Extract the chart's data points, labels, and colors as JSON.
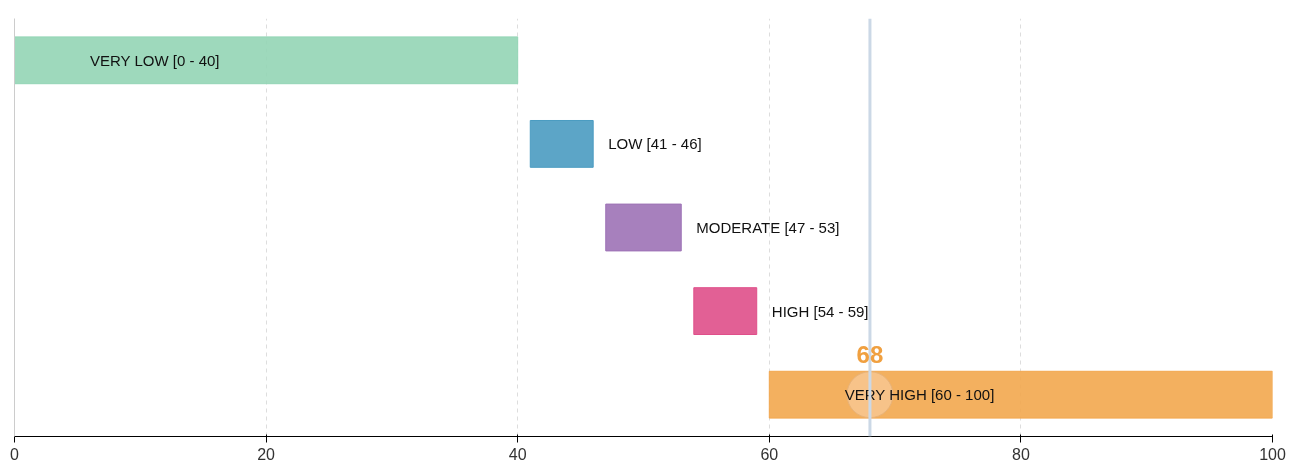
{
  "chart_data": {
    "type": "bar",
    "orientation": "horizontal",
    "categories": [
      null,
      null,
      null,
      null,
      null
    ],
    "base": [
      0,
      41,
      47,
      54,
      60
    ],
    "values": [
      40,
      5,
      6,
      5,
      40
    ],
    "colors": [
      "#93d5b5",
      "#4a9bc1",
      "#9d72b6",
      "#df4f8a",
      "#f2a74e"
    ],
    "value_labels": [
      "VERY LOW [0 - 40]",
      "LOW [41 - 46]",
      "MODERATE [47 - 53]",
      "HIGH [54 - 59]",
      "VERY HIGH [60 - 100]"
    ],
    "series": [
      {
        "type": "scatter",
        "color": "#f7c894",
        "values": [
          null,
          null,
          null,
          null,
          68
        ]
      }
    ],
    "xlim": [
      0,
      100
    ],
    "xticks": [
      0,
      20,
      40,
      60,
      80,
      100
    ],
    "grid": "x",
    "tick_labels": "x",
    "marker": "circle",
    "ref_lines": [
      {
        "axis": "x",
        "value": 68,
        "label": "68",
        "color": "#cbd8e6"
      }
    ]
  }
}
